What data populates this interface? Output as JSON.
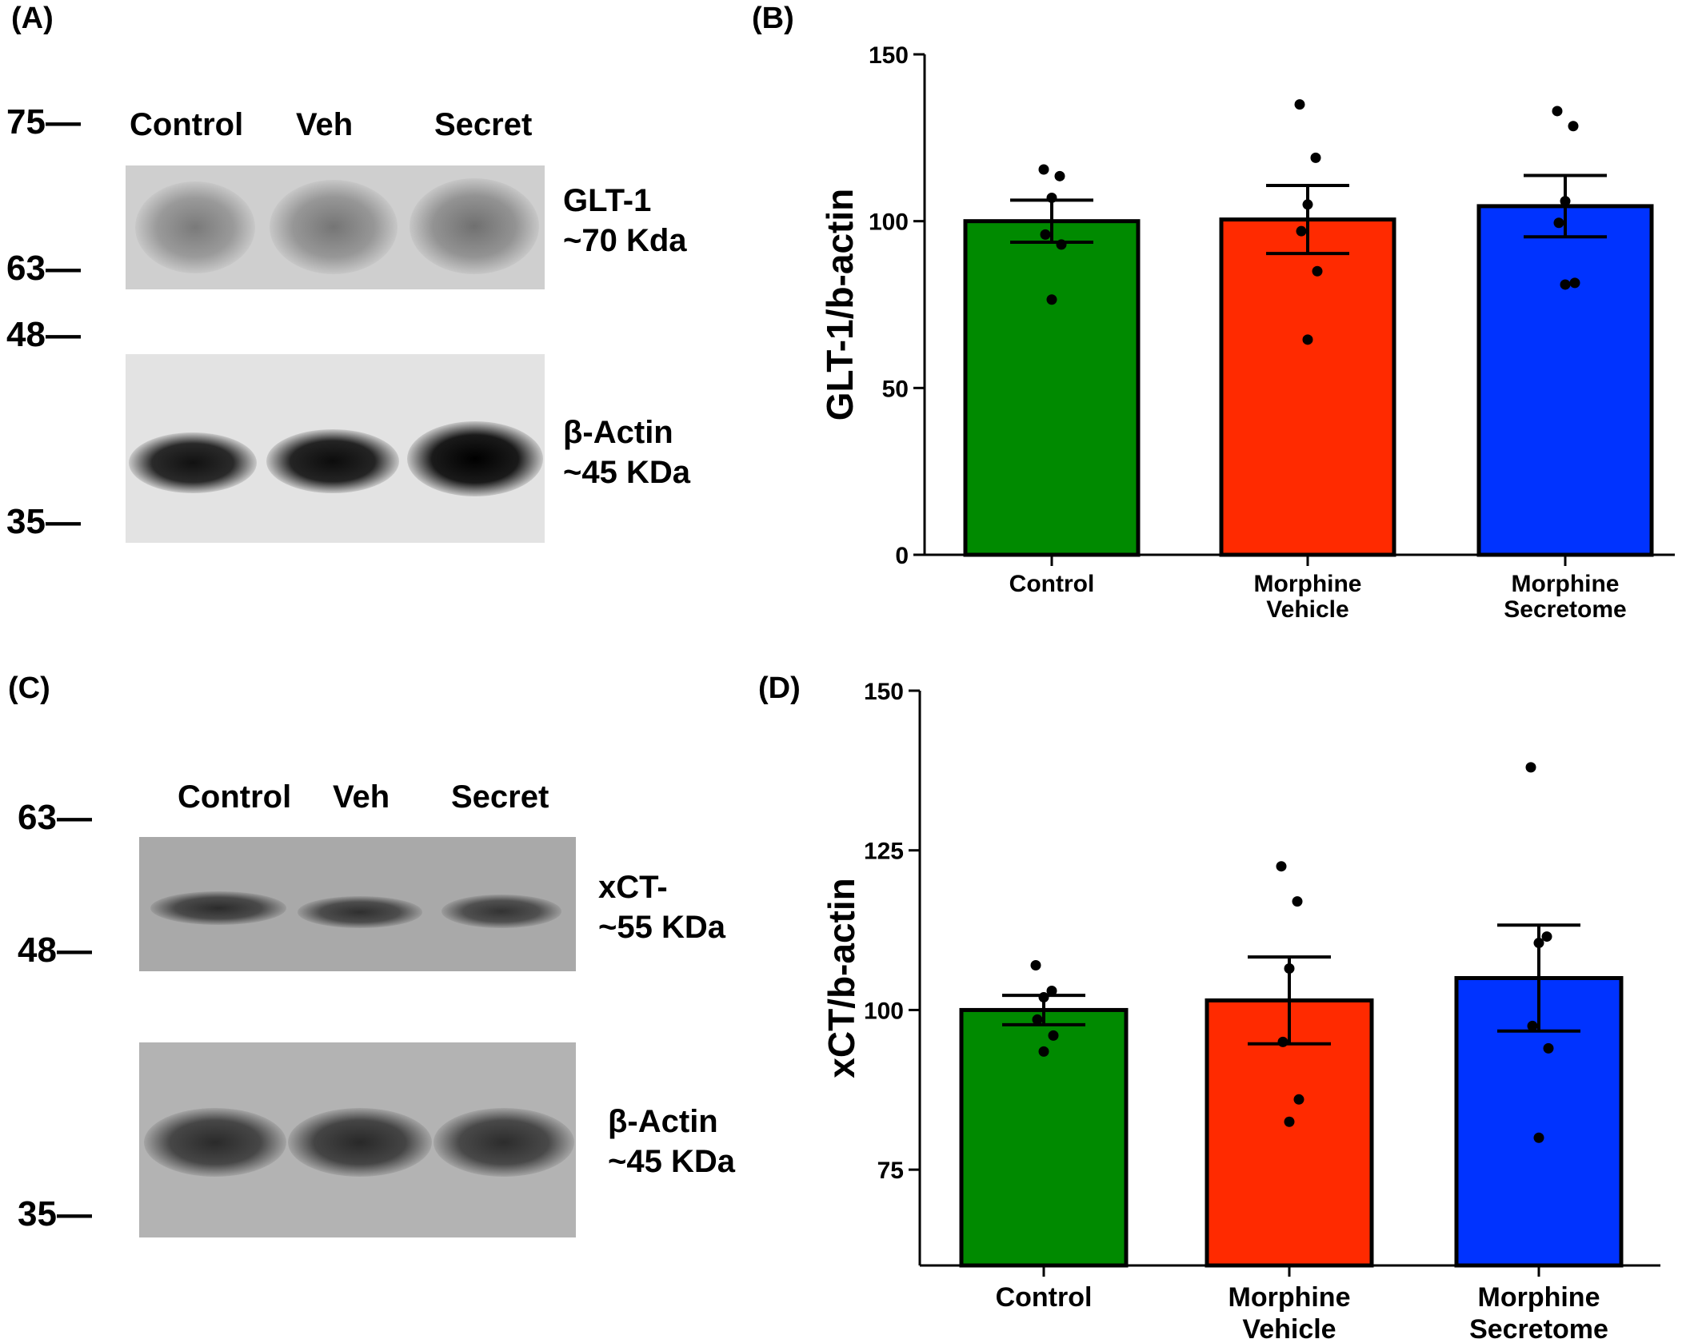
{
  "panels": {
    "a": {
      "letter": "(A)",
      "markers": [
        "75—",
        "63—",
        "48—",
        "35—"
      ],
      "lanes": [
        "Control",
        "Veh",
        "Secret"
      ],
      "top_band": {
        "line1": "GLT-1",
        "line2": "~70 Kda"
      },
      "bottom_band": {
        "line1": "β-Actin",
        "line2": "~45 KDa"
      }
    },
    "b": {
      "letter": "(B)"
    },
    "c": {
      "letter": "(C)",
      "markers": [
        "63—",
        "48—",
        "35—"
      ],
      "lanes": [
        "Control",
        "Veh",
        "Secret"
      ],
      "top_band": {
        "line1": "xCT-",
        "line2": "~55 KDa"
      },
      "bottom_band": {
        "line1": "β-Actin",
        "line2": "~45 KDa"
      }
    },
    "d": {
      "letter": "(D)"
    }
  },
  "chart_data": [
    {
      "type": "bar",
      "panel": "B",
      "categories": [
        [
          "Control"
        ],
        [
          "Morphine",
          "Vehicle"
        ],
        [
          "Morphine",
          "Secretome"
        ]
      ],
      "values": [
        100,
        100.5,
        104.5
      ],
      "sem": [
        6.3,
        10.2,
        9.2
      ],
      "points": [
        [
          115.5,
          113.5,
          107,
          96,
          93,
          76.5
        ],
        [
          135,
          119,
          105,
          97,
          85,
          64.5
        ],
        [
          133,
          128.5,
          106,
          99.5,
          81.5,
          81
        ]
      ],
      "colors": [
        "#008a00",
        "#ff2a00",
        "#0033ff"
      ],
      "ylabel": "GLT-1/b-actin",
      "ylim": [
        0,
        150
      ],
      "yticks": [
        0,
        50,
        100,
        150
      ],
      "grid": false
    },
    {
      "type": "bar",
      "panel": "D",
      "categories": [
        [
          "Control"
        ],
        [
          "Morphine",
          "Vehicle"
        ],
        [
          "Morphine",
          "Secretome"
        ]
      ],
      "values": [
        100,
        101.5,
        105
      ],
      "sem": [
        2.3,
        6.8,
        8.3
      ],
      "points": [
        [
          107,
          103,
          102,
          98.5,
          96,
          93.5
        ],
        [
          122.5,
          117,
          106.5,
          95,
          86,
          82.5
        ],
        [
          138,
          111.5,
          110.5,
          97.5,
          94,
          80
        ]
      ],
      "colors": [
        "#008a00",
        "#ff2a00",
        "#0033ff"
      ],
      "ylabel": "xCT/b-actin",
      "ylim": [
        60,
        150
      ],
      "yticks": [
        75,
        100,
        125,
        150
      ],
      "grid": false
    }
  ]
}
